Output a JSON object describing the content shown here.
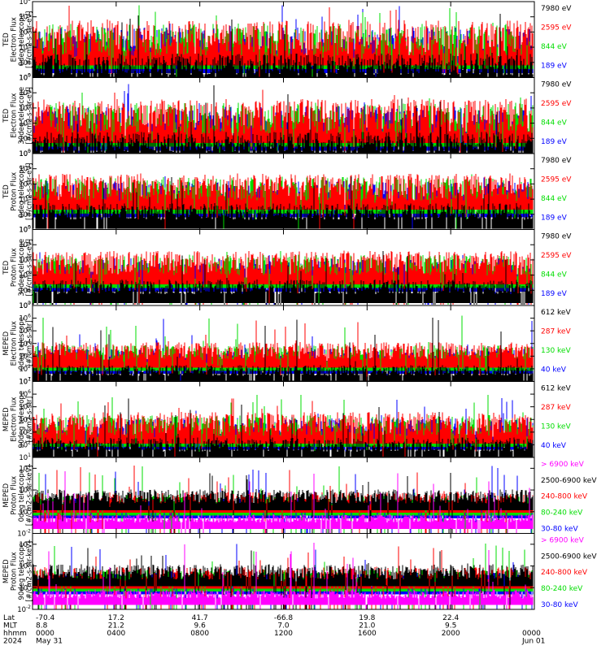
{
  "chart_data": {
    "type": "line",
    "x_time_labels": [
      "0000",
      "0400",
      "0800",
      "1200",
      "1600",
      "2000",
      "0000"
    ],
    "panels": [
      {
        "id": "ted-electron-0",
        "ylabel": [
          "TED",
          "Electron Flux",
          "0deg telescope",
          "[#/cm2-s-str-eV]"
        ],
        "tick_exponents": [
          0,
          1,
          2,
          3,
          4,
          5
        ],
        "ylim_exp": [
          0,
          5
        ],
        "baseline": 0.9,
        "spread": 2.4,
        "spike_max": 4.8,
        "series": [
          {
            "label": "7980 eV",
            "color": "#000000"
          },
          {
            "label": "2595 eV",
            "color": "#ff0000"
          },
          {
            "label": "844 eV",
            "color": "#00dd00"
          },
          {
            "label": "189 eV",
            "color": "#0000ff"
          }
        ]
      },
      {
        "id": "ted-electron-90",
        "ylabel": [
          "TED",
          "Electron Flux",
          "30deg telescope",
          "[#/cm2-s-str-eV]"
        ],
        "tick_exponents": [
          0,
          1,
          2,
          3,
          4,
          5
        ],
        "ylim_exp": [
          0,
          5
        ],
        "baseline": 0.8,
        "spread": 2.3,
        "spike_max": 4.6,
        "series": [
          {
            "label": "7980 eV",
            "color": "#000000"
          },
          {
            "label": "2595 eV",
            "color": "#ff0000"
          },
          {
            "label": "844 eV",
            "color": "#00dd00"
          },
          {
            "label": "189 eV",
            "color": "#0000ff"
          }
        ]
      },
      {
        "id": "ted-proton-0",
        "ylabel": [
          "TED",
          "Proton Flux",
          "0deg telescope",
          "[#/cm2-s-str-eV]"
        ],
        "tick_exponents": [
          0,
          1,
          2,
          3,
          4,
          5
        ],
        "ylim_exp": [
          0,
          5
        ],
        "baseline": 1.4,
        "spread": 1.8,
        "spike_max": 3.7,
        "series": [
          {
            "label": "7980 eV",
            "color": "#000000"
          },
          {
            "label": "2595 eV",
            "color": "#ff0000"
          },
          {
            "label": "844 eV",
            "color": "#00dd00"
          },
          {
            "label": "189 eV",
            "color": "#0000ff"
          }
        ]
      },
      {
        "id": "ted-proton-30",
        "ylabel": [
          "TED",
          "Proton Flux",
          "30deg telescope",
          "[#/cm2-s-str-eV]"
        ],
        "tick_exponents": [
          0,
          1,
          2,
          3,
          4,
          5
        ],
        "ylim_exp": [
          0,
          5
        ],
        "baseline": 1.5,
        "spread": 1.6,
        "spike_max": 3.6,
        "series": [
          {
            "label": "7980 eV",
            "color": "#000000"
          },
          {
            "label": "2595 eV",
            "color": "#ff0000"
          },
          {
            "label": "844 eV",
            "color": "#00dd00"
          },
          {
            "label": "189 eV",
            "color": "#0000ff"
          }
        ]
      },
      {
        "id": "meped-electron-0",
        "ylabel": [
          "MEPED",
          "Electron Flux",
          "0deg telescope",
          "[#/cm2-s-str]"
        ],
        "tick_exponents": [
          1,
          2,
          3,
          4,
          5,
          6,
          7
        ],
        "ylim_exp": [
          1,
          7
        ],
        "baseline": 2.2,
        "spread": 1.4,
        "spike_max": 6.2,
        "series": [
          {
            "label": "612 keV",
            "color": "#000000"
          },
          {
            "label": "287 keV",
            "color": "#ff0000"
          },
          {
            "label": "130 keV",
            "color": "#00dd00"
          },
          {
            "label": "40 keV",
            "color": "#0000ff"
          }
        ]
      },
      {
        "id": "meped-electron-90",
        "ylabel": [
          "MEPED",
          "Electron Flux",
          "90deg telescope",
          "[#/cm2-s-str]"
        ],
        "tick_exponents": [
          1,
          2,
          3,
          4,
          5,
          6,
          7
        ],
        "ylim_exp": [
          1,
          7
        ],
        "baseline": 2.2,
        "spread": 1.9,
        "spike_max": 6.0,
        "series": [
          {
            "label": "612 keV",
            "color": "#000000"
          },
          {
            "label": "287 keV",
            "color": "#ff0000"
          },
          {
            "label": "130 keV",
            "color": "#00dd00"
          },
          {
            "label": "40 keV",
            "color": "#0000ff"
          }
        ]
      },
      {
        "id": "meped-proton-0",
        "ylabel": [
          "MEPED",
          "Proton Flux",
          "0deg telescope",
          "[#/cm2-s-str-keV]"
        ],
        "tick_exponents": [
          -2,
          0,
          2,
          4
        ],
        "ylim_exp": [
          -2,
          5
        ],
        "baseline": 0.0,
        "spread": 1.3,
        "spike_max": 4.3,
        "series": [
          {
            "label": "> 6900 keV",
            "color": "#ff00ff"
          },
          {
            "label": "2500-6900 keV",
            "color": "#000000"
          },
          {
            "label": "240-800 keV",
            "color": "#ff0000"
          },
          {
            "label": "80-240 keV",
            "color": "#00dd00"
          },
          {
            "label": "30-80 keV",
            "color": "#0000ff"
          }
        ]
      },
      {
        "id": "meped-proton-90",
        "ylabel": [
          "MEPED",
          "Proton Flux",
          "90deg telescope",
          "[#/cm2-s-str-keV]"
        ],
        "tick_exponents": [
          -2,
          0,
          2,
          4
        ],
        "ylim_exp": [
          -2,
          5
        ],
        "baseline": 0.0,
        "spread": 1.4,
        "spike_max": 4.2,
        "series": [
          {
            "label": "> 6900 keV",
            "color": "#ff00ff"
          },
          {
            "label": "2500-6900 keV",
            "color": "#000000"
          },
          {
            "label": "240-800 keV",
            "color": "#ff0000"
          },
          {
            "label": "80-240 keV",
            "color": "#00dd00"
          },
          {
            "label": "30-80 keV",
            "color": "#0000ff"
          }
        ]
      }
    ],
    "ephemeris": {
      "row_labels": [
        "Lat",
        "MLT",
        "hhmm",
        "2024"
      ],
      "columns": [
        {
          "lat": "-70.4",
          "mlt": "8.8",
          "hhmm": "0000",
          "date": "May 31"
        },
        {
          "lat": "17.2",
          "mlt": "21.2",
          "hhmm": "0400",
          "date": ""
        },
        {
          "lat": "41.7",
          "mlt": "9.6",
          "hhmm": "0800",
          "date": ""
        },
        {
          "lat": "-66.8",
          "mlt": "7.0",
          "hhmm": "1200",
          "date": ""
        },
        {
          "lat": "19.8",
          "mlt": "21.0",
          "hhmm": "1600",
          "date": ""
        },
        {
          "lat": "22.4",
          "mlt": "9.5",
          "hhmm": "2000",
          "date": ""
        },
        {
          "lat": "",
          "mlt": "",
          "hhmm": "0000",
          "date": "Jun 01"
        }
      ]
    },
    "grid": false,
    "legend_placement": "right"
  }
}
